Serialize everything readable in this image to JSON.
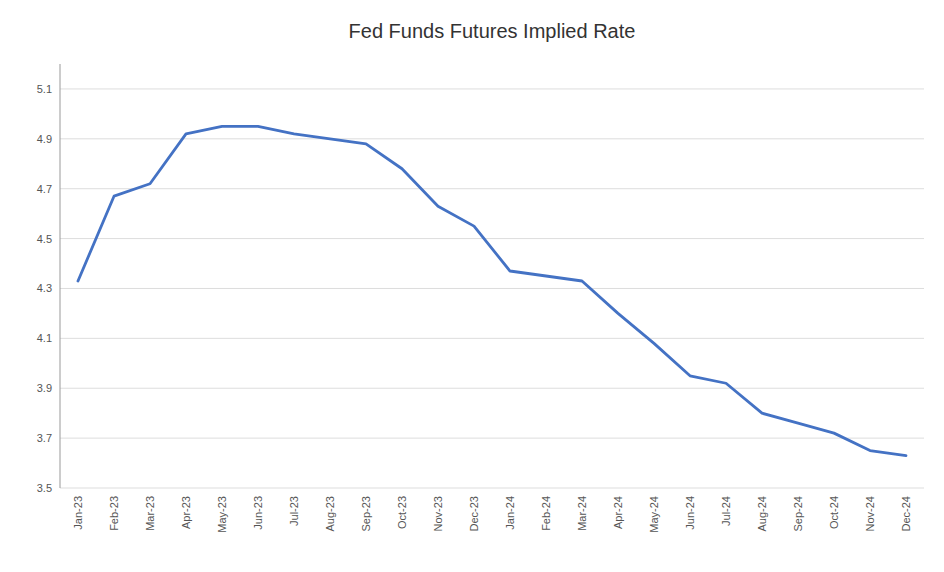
{
  "chart_data": {
    "type": "line",
    "title": "Fed Funds Futures Implied Rate",
    "categories": [
      "Jan-23",
      "Feb-23",
      "Mar-23",
      "Apr-23",
      "May-23",
      "Jun-23",
      "Jul-23",
      "Aug-23",
      "Sep-23",
      "Oct-23",
      "Nov-23",
      "Dec-23",
      "Jan-24",
      "Feb-24",
      "Mar-24",
      "Apr-24",
      "May-24",
      "Jun-24",
      "Jul-24",
      "Aug-24",
      "Sep-24",
      "Oct-24",
      "Nov-24",
      "Dec-24"
    ],
    "values": [
      4.33,
      4.67,
      4.72,
      4.92,
      4.95,
      4.95,
      4.92,
      4.9,
      4.88,
      4.78,
      4.63,
      4.55,
      4.37,
      4.35,
      4.33,
      4.2,
      4.08,
      3.95,
      3.92,
      3.8,
      3.76,
      3.72,
      3.65,
      3.63
    ],
    "color": "#4472C4",
    "ylim": [
      3.5,
      5.2
    ],
    "yticks": [
      3.5,
      3.7,
      3.9,
      4.1,
      4.3,
      4.5,
      4.7,
      4.9,
      5.1
    ],
    "grid": true
  }
}
